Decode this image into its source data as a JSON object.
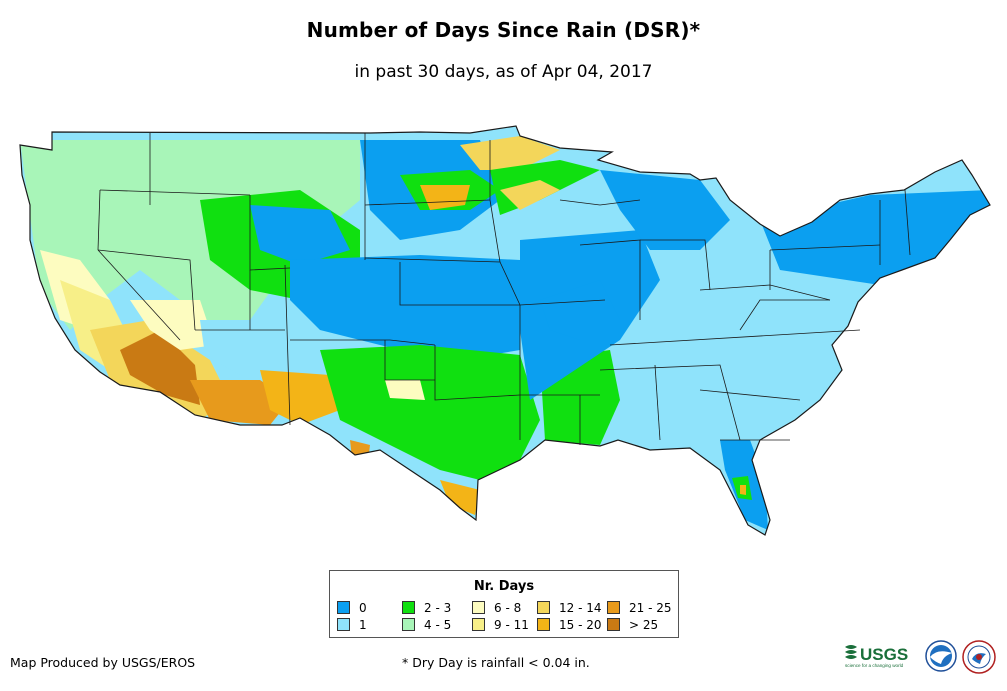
{
  "header": {
    "title": "Number of Days Since Rain (DSR)*",
    "subtitle": "in past 30 days, as of Apr 04, 2017"
  },
  "legend": {
    "title": "Nr. Days",
    "items": [
      {
        "label": "0",
        "color": "#0b9ff0"
      },
      {
        "label": "1",
        "color": "#8fe3fb"
      },
      {
        "label": "2 - 3",
        "color": "#10e010"
      },
      {
        "label": "4 - 5",
        "color": "#a8f5b8"
      },
      {
        "label": "6 - 8",
        "color": "#fdfcc0"
      },
      {
        "label": "9 - 11",
        "color": "#f7ef88"
      },
      {
        "label": "12 - 14",
        "color": "#f3d65a"
      },
      {
        "label": "15 - 20",
        "color": "#f3b417"
      },
      {
        "label": "21 - 25",
        "color": "#e79a1c"
      },
      {
        "label": "> 25",
        "color": "#c97a14"
      }
    ]
  },
  "footer": {
    "credit": "Map Produced by USGS/EROS",
    "footnote": "* Dry Day is rainfall < 0.04 in.",
    "usgs_logo_text": "USGS",
    "usgs_logo_tagline": "science for a changing world"
  },
  "colors": {
    "state_border": "#1a1a1a",
    "background": "#ffffff"
  }
}
